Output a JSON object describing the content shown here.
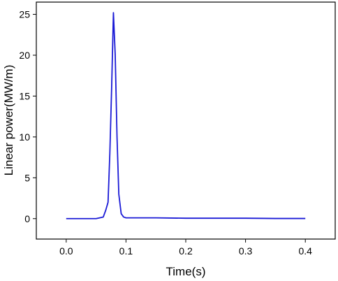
{
  "chart_data": {
    "type": "line",
    "title": "",
    "xlabel": "Time(s)",
    "ylabel": "Linear power(MW/m)",
    "xlim": [
      -0.05,
      0.45
    ],
    "ylim": [
      -2.5,
      26.5
    ],
    "xticks": [
      0.0,
      0.1,
      0.2,
      0.3,
      0.4
    ],
    "xtick_labels": [
      "0.0",
      "0.1",
      "0.2",
      "0.3",
      "0.4"
    ],
    "yticks": [
      0,
      5,
      10,
      15,
      20,
      25
    ],
    "ytick_labels": [
      "0",
      "5",
      "10",
      "15",
      "20",
      "25"
    ],
    "grid": false,
    "legend": "none",
    "series": [
      {
        "color": "#1a1ad6",
        "x": [
          0.0,
          0.05,
          0.062,
          0.066,
          0.07,
          0.073,
          0.076,
          0.079,
          0.082,
          0.085,
          0.088,
          0.092,
          0.096,
          0.1,
          0.15,
          0.2,
          0.25,
          0.3,
          0.35,
          0.4
        ],
        "y": [
          0.0,
          0.0,
          0.2,
          1.0,
          2.0,
          8.0,
          16.0,
          25.2,
          20.0,
          10.0,
          3.0,
          0.6,
          0.2,
          0.1,
          0.1,
          0.05,
          0.05,
          0.05,
          0.02,
          0.02
        ]
      }
    ]
  }
}
